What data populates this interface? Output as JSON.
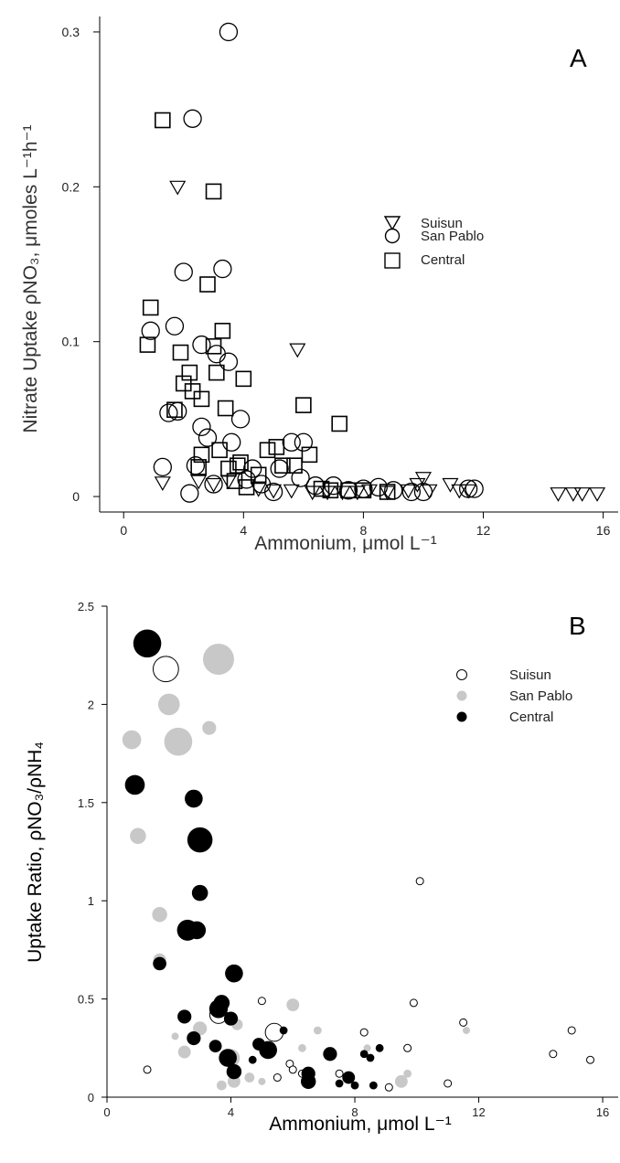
{
  "chart_data": [
    {
      "type": "scatter",
      "panel_label": "A",
      "title": "",
      "xlabel": "Ammonium, μmol L⁻¹",
      "ylabel": "Nitrate Uptake ρNO₃, μmoles L⁻¹h⁻¹",
      "xlim": [
        -0.8,
        16.5
      ],
      "ylim": [
        -0.01,
        0.31
      ],
      "xticks": [
        0,
        4,
        8,
        12,
        16
      ],
      "xtick_labels": [
        "0",
        "4",
        "8",
        "12",
        "16"
      ],
      "yticks": [
        0,
        0.1,
        0.2,
        0.3
      ],
      "ytick_labels": [
        "0",
        "0.1",
        "0.2",
        "0.3"
      ],
      "legend_position": "top-right",
      "series": [
        {
          "name": "Suisun",
          "marker": "triangle-down",
          "points": [
            [
              1.3,
              0.009
            ],
            [
              1.8,
              0.2
            ],
            [
              2.5,
              0.01
            ],
            [
              3.0,
              0.008
            ],
            [
              3.5,
              0.01
            ],
            [
              4.5,
              0.005
            ],
            [
              5.0,
              0.004
            ],
            [
              5.6,
              0.004
            ],
            [
              5.8,
              0.095
            ],
            [
              6.3,
              0.003
            ],
            [
              6.8,
              0.003
            ],
            [
              7.3,
              0.003
            ],
            [
              7.8,
              0.003
            ],
            [
              8.2,
              0.004
            ],
            [
              8.8,
              0.003
            ],
            [
              9.5,
              0.004
            ],
            [
              9.8,
              0.008
            ],
            [
              10.0,
              0.012
            ],
            [
              10.2,
              0.004
            ],
            [
              10.9,
              0.008
            ],
            [
              11.2,
              0.004
            ],
            [
              11.5,
              0.004
            ],
            [
              14.5,
              0.002
            ],
            [
              15.0,
              0.002
            ],
            [
              15.3,
              0.002
            ],
            [
              15.8,
              0.002
            ]
          ]
        },
        {
          "name": "San Pablo",
          "marker": "circle",
          "points": [
            [
              0.9,
              0.107
            ],
            [
              1.3,
              0.019
            ],
            [
              1.5,
              0.054
            ],
            [
              1.7,
              0.11
            ],
            [
              1.8,
              0.055
            ],
            [
              2.0,
              0.145
            ],
            [
              2.2,
              0.002
            ],
            [
              2.3,
              0.244
            ],
            [
              2.4,
              0.02
            ],
            [
              2.6,
              0.045
            ],
            [
              2.6,
              0.098
            ],
            [
              2.8,
              0.038
            ],
            [
              3.0,
              0.008
            ],
            [
              3.1,
              0.092
            ],
            [
              3.3,
              0.147
            ],
            [
              3.5,
              0.087
            ],
            [
              3.5,
              0.3
            ],
            [
              3.6,
              0.035
            ],
            [
              3.9,
              0.05
            ],
            [
              4.1,
              0.011
            ],
            [
              4.3,
              0.018
            ],
            [
              4.6,
              0.008
            ],
            [
              5.0,
              0.003
            ],
            [
              5.2,
              0.018
            ],
            [
              5.6,
              0.035
            ],
            [
              5.9,
              0.012
            ],
            [
              6.0,
              0.035
            ],
            [
              6.4,
              0.007
            ],
            [
              7.0,
              0.007
            ],
            [
              7.5,
              0.004
            ],
            [
              8.0,
              0.005
            ],
            [
              8.5,
              0.006
            ],
            [
              9.0,
              0.004
            ],
            [
              9.6,
              0.003
            ],
            [
              10.0,
              0.003
            ],
            [
              11.5,
              0.005
            ],
            [
              11.7,
              0.005
            ]
          ]
        },
        {
          "name": "Central",
          "marker": "square",
          "points": [
            [
              0.8,
              0.098
            ],
            [
              0.9,
              0.122
            ],
            [
              1.3,
              0.243
            ],
            [
              1.7,
              0.056
            ],
            [
              1.9,
              0.093
            ],
            [
              2.0,
              0.073
            ],
            [
              2.2,
              0.08
            ],
            [
              2.3,
              0.068
            ],
            [
              2.5,
              0.019
            ],
            [
              2.6,
              0.063
            ],
            [
              2.6,
              0.027
            ],
            [
              2.8,
              0.137
            ],
            [
              3.0,
              0.097
            ],
            [
              3.0,
              0.197
            ],
            [
              3.1,
              0.08
            ],
            [
              3.2,
              0.03
            ],
            [
              3.3,
              0.107
            ],
            [
              3.4,
              0.057
            ],
            [
              3.5,
              0.018
            ],
            [
              3.7,
              0.01
            ],
            [
              3.8,
              0.02
            ],
            [
              3.9,
              0.022
            ],
            [
              4.0,
              0.076
            ],
            [
              4.1,
              0.006
            ],
            [
              4.5,
              0.014
            ],
            [
              4.8,
              0.03
            ],
            [
              5.1,
              0.032
            ],
            [
              5.3,
              0.02
            ],
            [
              5.7,
              0.02
            ],
            [
              6.0,
              0.059
            ],
            [
              6.2,
              0.027
            ],
            [
              6.6,
              0.005
            ],
            [
              6.9,
              0.004
            ],
            [
              7.2,
              0.047
            ],
            [
              7.5,
              0.004
            ],
            [
              8.0,
              0.004
            ],
            [
              8.8,
              0.003
            ]
          ]
        }
      ]
    },
    {
      "type": "scatter",
      "panel_label": "B",
      "title": "",
      "xlabel": "Ammonium, μmol L⁻¹",
      "ylabel": "Uptake Ratio, ρNO₃/ρNH₄",
      "xlim": [
        0,
        16.5
      ],
      "ylim": [
        0,
        2.5
      ],
      "xticks": [
        0,
        4,
        8,
        12,
        16
      ],
      "xtick_labels": [
        "0",
        "4",
        "8",
        "12",
        "16"
      ],
      "yticks": [
        0,
        0.5,
        1,
        1.5,
        2,
        2.5
      ],
      "ytick_labels": [
        "0",
        "0.5",
        "1",
        "1.5",
        "2",
        "2.5"
      ],
      "legend_position": "top-right",
      "bubble_size_variable": "Nitrate Uptake ρNO₃",
      "series": [
        {
          "name": "Suisun",
          "color": "#000000",
          "fill": "#ffffff",
          "points": [
            [
              1.3,
              0.14,
              0.009
            ],
            [
              1.9,
              2.18,
              0.2
            ],
            [
              3.6,
              0.42,
              0.095
            ],
            [
              5.0,
              0.49,
              0.01
            ],
            [
              5.4,
              0.33,
              0.1
            ],
            [
              5.5,
              0.1,
              0.01
            ],
            [
              5.9,
              0.17,
              0.009
            ],
            [
              6.0,
              0.14,
              0.006
            ],
            [
              6.3,
              0.12,
              0.005
            ],
            [
              7.5,
              0.12,
              0.007
            ],
            [
              8.3,
              0.33,
              0.008
            ],
            [
              9.1,
              0.05,
              0.006
            ],
            [
              9.7,
              0.25,
              0.006
            ],
            [
              9.9,
              0.48,
              0.008
            ],
            [
              10.1,
              1.1,
              0.008
            ],
            [
              11.0,
              0.07,
              0.008
            ],
            [
              11.5,
              0.38,
              0.006
            ],
            [
              14.4,
              0.22,
              0.005
            ],
            [
              15.0,
              0.34,
              0.005
            ],
            [
              15.6,
              0.19,
              0.005
            ]
          ]
        },
        {
          "name": "San Pablo",
          "color": "#c8c8c8",
          "fill": "#c8c8c8",
          "points": [
            [
              0.8,
              1.82,
              0.11
            ],
            [
              1.0,
              1.33,
              0.08
            ],
            [
              1.7,
              0.93,
              0.07
            ],
            [
              1.7,
              0.7,
              0.05
            ],
            [
              2.0,
              2.0,
              0.145
            ],
            [
              2.2,
              0.31,
              0.01
            ],
            [
              2.3,
              1.81,
              0.244
            ],
            [
              2.5,
              0.23,
              0.05
            ],
            [
              3.0,
              0.35,
              0.06
            ],
            [
              3.3,
              1.88,
              0.06
            ],
            [
              3.6,
              2.23,
              0.3
            ],
            [
              3.7,
              0.06,
              0.03
            ],
            [
              4.0,
              0.2,
              0.1
            ],
            [
              4.1,
              0.08,
              0.05
            ],
            [
              4.2,
              0.37,
              0.04
            ],
            [
              4.6,
              0.1,
              0.03
            ],
            [
              5.0,
              0.08,
              0.01
            ],
            [
              6.0,
              0.47,
              0.05
            ],
            [
              6.3,
              0.25,
              0.02
            ],
            [
              6.8,
              0.34,
              0.02
            ],
            [
              8.4,
              0.25,
              0.01
            ],
            [
              9.5,
              0.08,
              0.05
            ],
            [
              9.7,
              0.12,
              0.02
            ],
            [
              11.6,
              0.34,
              0.01
            ]
          ]
        },
        {
          "name": "Central",
          "color": "#000000",
          "fill": "#000000",
          "points": [
            [
              0.9,
              1.59,
              0.122
            ],
            [
              1.3,
              2.31,
              0.243
            ],
            [
              1.7,
              0.68,
              0.056
            ],
            [
              2.5,
              0.41,
              0.06
            ],
            [
              2.6,
              0.85,
              0.137
            ],
            [
              2.8,
              1.52,
              0.1
            ],
            [
              2.8,
              0.3,
              0.06
            ],
            [
              2.9,
              0.85,
              0.1
            ],
            [
              3.0,
              1.31,
              0.197
            ],
            [
              3.0,
              1.04,
              0.08
            ],
            [
              3.5,
              0.26,
              0.05
            ],
            [
              3.6,
              0.45,
              0.107
            ],
            [
              3.7,
              0.48,
              0.08
            ],
            [
              3.9,
              0.2,
              0.1
            ],
            [
              4.0,
              0.4,
              0.06
            ],
            [
              4.1,
              0.13,
              0.07
            ],
            [
              4.1,
              0.63,
              0.1
            ],
            [
              4.7,
              0.19,
              0.02
            ],
            [
              4.9,
              0.27,
              0.05
            ],
            [
              5.2,
              0.24,
              0.1
            ],
            [
              5.7,
              0.34,
              0.02
            ],
            [
              6.5,
              0.08,
              0.07
            ],
            [
              6.5,
              0.12,
              0.06
            ],
            [
              7.2,
              0.22,
              0.06
            ],
            [
              7.5,
              0.07,
              0.02
            ],
            [
              7.8,
              0.1,
              0.05
            ],
            [
              8.0,
              0.06,
              0.02
            ],
            [
              8.3,
              0.22,
              0.02
            ],
            [
              8.5,
              0.2,
              0.02
            ],
            [
              8.6,
              0.06,
              0.02
            ],
            [
              8.8,
              0.25,
              0.02
            ]
          ]
        }
      ]
    }
  ]
}
